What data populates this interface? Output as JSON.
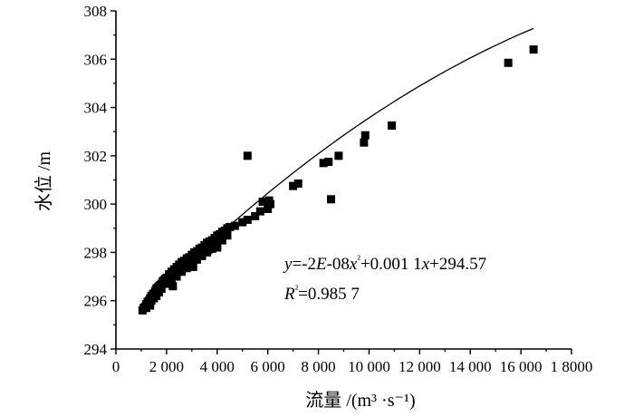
{
  "chart_data": {
    "type": "scatter",
    "xlabel": "流量 /(m³ ·s⁻¹)",
    "ylabel": "水位 /m",
    "xlim": [
      0,
      18000
    ],
    "ylim": [
      294,
      308
    ],
    "x_ticks": [
      0,
      2000,
      4000,
      6000,
      8000,
      10000,
      12000,
      14000,
      16000,
      18000
    ],
    "x_tick_labels": [
      "0",
      "2 000",
      "4 000",
      "6 000",
      "8 000",
      "10 000",
      "12 000",
      "14 000",
      "16 000",
      "1 8000"
    ],
    "y_ticks": [
      294,
      296,
      298,
      300,
      302,
      304,
      306,
      308
    ],
    "y_tick_labels": [
      "294",
      "296",
      "298",
      "300",
      "302",
      "304",
      "306",
      "308"
    ],
    "grid": false,
    "series": [
      {
        "marker": "square",
        "color": "#000000",
        "x": [
          1050,
          1100,
          1150,
          1200,
          1250,
          1300,
          1350,
          1400,
          1450,
          1500,
          1550,
          1600,
          1650,
          1700,
          1750,
          1800,
          1850,
          1900,
          1950,
          2000,
          2100,
          2200,
          2300,
          2400,
          2500,
          2600,
          2700,
          2800,
          2900,
          3000,
          3100,
          3200,
          3300,
          3400,
          3500,
          3600,
          3700,
          3800,
          3900,
          4000,
          4100,
          4200,
          4300,
          4400,
          4500,
          1200,
          1300,
          1400,
          1500,
          1600,
          1700,
          1800,
          2000,
          2200,
          2400,
          2600,
          2800,
          3000,
          3200,
          3400,
          3600,
          3800,
          4000,
          4200,
          4400,
          1350,
          2250,
          3050,
          3650,
          4000,
          4700,
          5000,
          5200,
          5500,
          5700,
          5800,
          6000,
          6100,
          6050,
          7000,
          7200,
          8200,
          8400,
          8800,
          8500,
          9800,
          9850,
          10900,
          5200,
          15500,
          16500
        ],
        "y": [
          295.6,
          295.7,
          295.75,
          295.85,
          295.95,
          296.0,
          296.1,
          296.2,
          296.25,
          296.3,
          296.4,
          296.5,
          296.55,
          296.6,
          296.65,
          296.7,
          296.8,
          296.85,
          296.9,
          296.95,
          297.1,
          297.2,
          297.3,
          297.4,
          297.5,
          297.6,
          297.65,
          297.75,
          297.8,
          297.9,
          298.0,
          298.05,
          298.15,
          298.2,
          298.3,
          298.4,
          298.45,
          298.5,
          298.6,
          298.7,
          298.75,
          298.85,
          298.9,
          299.0,
          299.05,
          295.7,
          295.85,
          296.0,
          296.1,
          296.2,
          296.35,
          296.5,
          296.7,
          296.85,
          297.0,
          297.2,
          297.35,
          297.5,
          297.7,
          297.85,
          298.0,
          298.15,
          298.3,
          298.5,
          298.7,
          295.8,
          296.6,
          297.4,
          298.1,
          298.2,
          299.1,
          299.25,
          299.35,
          299.5,
          299.7,
          300.1,
          299.8,
          300.0,
          300.15,
          300.75,
          300.85,
          301.7,
          301.75,
          302.0,
          300.2,
          302.55,
          302.85,
          303.25,
          302.0,
          305.85,
          306.4
        ]
      }
    ],
    "trendline": {
      "type": "polynomial",
      "coefficients": [
        -2e-08,
        0.0011,
        294.57
      ],
      "x_range": [
        1000,
        16500
      ]
    },
    "annotations": {
      "equation": {
        "y_var": "y",
        "eq": "=-2",
        "E": "E",
        "exp1": "-08",
        "x1": "x",
        "sq": "²",
        "plus": "+0.001 1",
        "x2": "x",
        "tail": "+294.57"
      },
      "r2": {
        "R": "R",
        "sq": "²",
        "val": "=0.985 7"
      }
    }
  }
}
